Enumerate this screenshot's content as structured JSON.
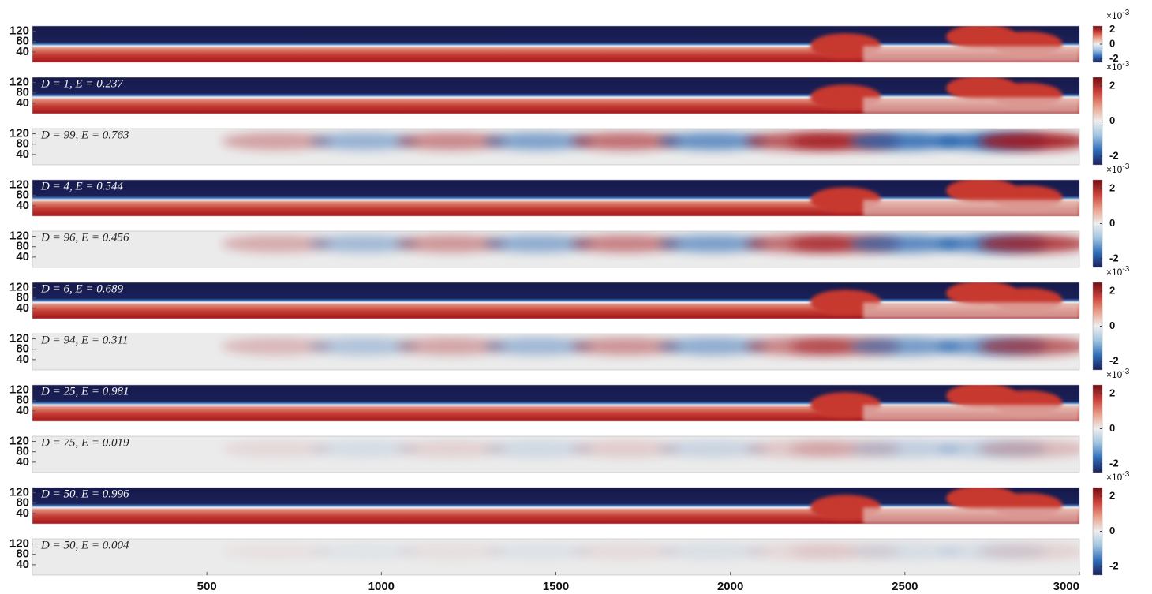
{
  "chart_data": {
    "type": "field-panels",
    "xlim": [
      0,
      3000
    ],
    "xticks": [
      500,
      1000,
      1500,
      2000,
      2500,
      3000
    ],
    "ylim": [
      0,
      140
    ],
    "yticks": [
      40,
      80,
      120
    ],
    "panels": [
      {
        "annotation": null
      },
      {
        "annotation": "D = 1, E = 0.237"
      },
      {
        "annotation": "D = 99, E = 0.763"
      },
      {
        "annotation": "D = 4, E = 0.544"
      },
      {
        "annotation": "D = 96, E = 0.456"
      },
      {
        "annotation": "D = 6, E = 0.689"
      },
      {
        "annotation": "D = 94, E = 0.311"
      },
      {
        "annotation": "D = 25, E = 0.981"
      },
      {
        "annotation": "D = 75, E = 0.019"
      },
      {
        "annotation": "D = 50, E = 0.996"
      },
      {
        "annotation": "D = 50, E = 0.004"
      }
    ],
    "colorbar": {
      "clim": [
        -0.0025,
        0.0025
      ],
      "ticks": [
        {
          "value": 0.002,
          "label": "2"
        },
        {
          "value": 0,
          "label": "0"
        },
        {
          "value": -0.002,
          "label": "-2"
        }
      ],
      "multiplier": "×10",
      "exponent": "-3",
      "colors": [
        "#1b1f5a",
        "#2f6db5",
        "#9fc3e0",
        "#eeeeee",
        "#e8a08a",
        "#c8413a",
        "#6e0f14"
      ]
    }
  }
}
